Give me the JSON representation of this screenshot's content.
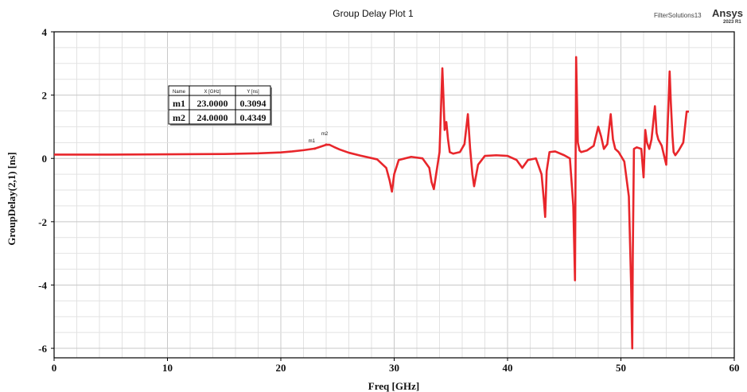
{
  "header": {
    "brand_small": "FilterSolutions13",
    "brand_big": "Ansys",
    "brand_sub": "2023 R1"
  },
  "marker_table": {
    "columns": [
      "Name",
      "X [GHz]",
      "Y [ns]"
    ],
    "rows": [
      [
        "m1",
        "23.0000",
        "0.3094"
      ],
      [
        "m2",
        "24.0000",
        "0.4349"
      ]
    ]
  },
  "chart_data": {
    "type": "line",
    "title": "Group Delay Plot 1",
    "xlabel": "Freq [GHz]",
    "ylabel": "GroupDelay(2,1) [ns]",
    "xlim": [
      0,
      60
    ],
    "ylim": [
      -6.3,
      4
    ],
    "xticks": [
      0,
      10,
      20,
      30,
      40,
      50,
      60
    ],
    "yticks": [
      4,
      2,
      0,
      -2,
      -4,
      -6
    ],
    "grid": true,
    "line_color": "#e8262b",
    "series": [
      {
        "x": [
          0,
          5,
          10,
          15,
          18,
          20,
          21,
          22,
          23,
          23.5,
          24,
          24.3,
          24.7,
          25.2,
          26,
          27,
          28.5,
          29.3,
          29.6,
          29.8,
          30.0,
          30.4,
          31.5,
          32.5,
          33.1,
          33.3,
          33.5,
          33.7,
          34.0,
          34.25,
          34.35,
          34.45,
          34.6,
          34.75,
          34.9,
          35.2,
          35.8,
          36.2,
          36.5,
          36.7,
          36.9,
          37.05,
          37.4,
          38.0,
          39.0,
          40.0,
          40.8,
          41.3,
          41.8,
          42.5,
          43.0,
          43.2,
          43.32,
          43.45,
          43.7,
          44.2,
          45.0,
          45.5,
          45.8,
          45.95,
          46.05,
          46.2,
          46.35,
          46.5,
          47.0,
          47.6,
          48.0,
          48.25,
          48.5,
          48.8,
          49.1,
          49.3,
          49.5,
          49.8,
          50.3,
          50.7,
          50.9,
          51.0,
          51.05,
          51.15,
          51.4,
          51.8,
          52.0,
          52.15,
          52.3,
          52.5,
          52.7,
          53.0,
          53.15,
          53.3,
          53.6,
          54.0,
          54.3,
          54.4,
          54.55,
          54.65,
          54.8,
          55.1,
          55.5,
          55.8,
          56.0
        ],
        "y": [
          0.12,
          0.12,
          0.13,
          0.14,
          0.16,
          0.19,
          0.22,
          0.26,
          0.31,
          0.37,
          0.43,
          0.43,
          0.36,
          0.28,
          0.18,
          0.09,
          -0.03,
          -0.3,
          -0.7,
          -1.05,
          -0.5,
          -0.05,
          0.05,
          0.0,
          -0.3,
          -0.75,
          -0.97,
          -0.5,
          0.2,
          2.85,
          1.9,
          0.9,
          1.15,
          0.6,
          0.2,
          0.15,
          0.2,
          0.45,
          1.4,
          0.3,
          -0.5,
          -0.88,
          -0.2,
          0.08,
          0.1,
          0.08,
          -0.05,
          -0.3,
          -0.05,
          0.0,
          -0.5,
          -1.3,
          -1.85,
          -0.4,
          0.2,
          0.22,
          0.1,
          0.0,
          -1.5,
          -3.85,
          3.2,
          0.5,
          0.25,
          0.2,
          0.25,
          0.4,
          1.0,
          0.7,
          0.3,
          0.45,
          1.4,
          0.6,
          0.3,
          0.2,
          -0.1,
          -1.2,
          -4.0,
          -6.0,
          -3.0,
          0.3,
          0.35,
          0.3,
          -0.6,
          0.9,
          0.5,
          0.3,
          0.6,
          1.65,
          0.8,
          0.6,
          0.4,
          -0.2,
          2.75,
          1.8,
          0.7,
          0.2,
          0.1,
          0.25,
          0.5,
          1.48,
          1.48
        ]
      }
    ],
    "markers": [
      {
        "name": "m1",
        "x": 23.0,
        "y": 0.3094
      },
      {
        "name": "m2",
        "x": 24.0,
        "y": 0.4349
      }
    ]
  }
}
